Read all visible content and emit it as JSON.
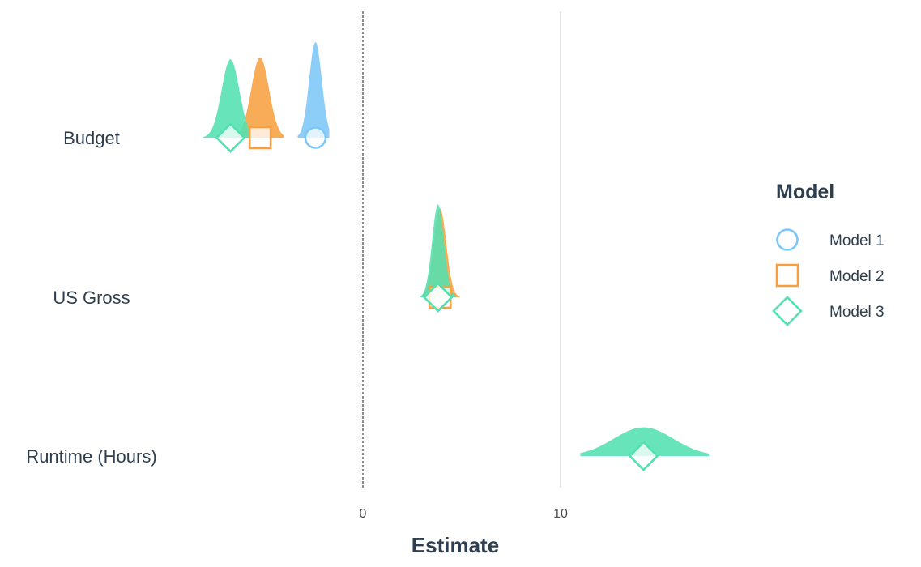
{
  "chart_data": {
    "type": "forest-density",
    "xlabel": "Estimate",
    "xlim": [
      -18,
      21.3
    ],
    "x_ticks": [
      0,
      10
    ],
    "x_tick_labels": [
      "0",
      "10"
    ],
    "reference_line": 0,
    "grid": "vertical major lines only",
    "categories": [
      "Budget",
      "US Gross",
      "Runtime (Hours)"
    ],
    "legend": {
      "title": "Model",
      "position": "right"
    },
    "series": [
      {
        "name": "Model 1",
        "color": "#7cc7f7",
        "marker": "circle",
        "estimates": [
          {
            "term": "Budget",
            "estimate": -2.4,
            "sd": 0.32,
            "lo": -3.3,
            "hi": -1.7,
            "peak_height": 1.0
          }
        ]
      },
      {
        "name": "Model 2",
        "color": "#f8a040",
        "marker": "square",
        "estimates": [
          {
            "term": "Budget",
            "estimate": -5.2,
            "sd": 0.45,
            "lo": -6.6,
            "hi": -4.0,
            "peak_height": 0.84
          },
          {
            "term": "US Gross",
            "estimate": 3.9,
            "sd": 0.32,
            "lo": 3.0,
            "hi": 4.9,
            "peak_height": 0.93
          }
        ]
      },
      {
        "name": "Model 3",
        "color": "#52e0b0",
        "marker": "diamond",
        "estimates": [
          {
            "term": "Budget",
            "estimate": -6.7,
            "sd": 0.45,
            "lo": -8.1,
            "hi": -5.6,
            "peak_height": 0.82
          },
          {
            "term": "US Gross",
            "estimate": 3.8,
            "sd": 0.3,
            "lo": 2.9,
            "hi": 4.7,
            "peak_height": 0.97
          },
          {
            "term": "Runtime (Hours)",
            "estimate": 14.2,
            "sd": 1.5,
            "lo": 11.0,
            "hi": 17.5,
            "peak_height": 0.3
          }
        ]
      }
    ]
  }
}
